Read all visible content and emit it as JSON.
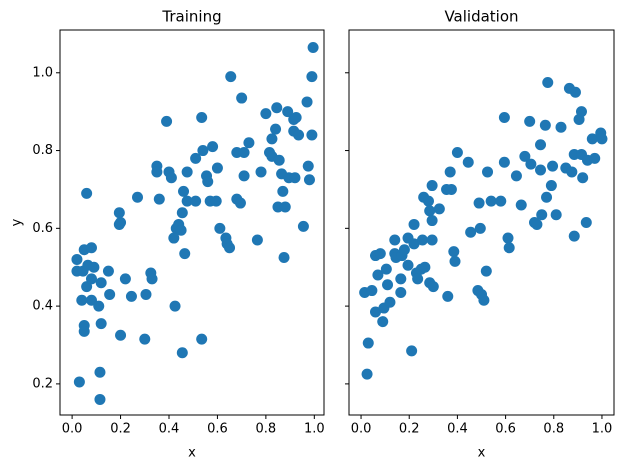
{
  "chart_data": [
    {
      "type": "scatter",
      "title": "Training",
      "x_label": "x",
      "y_label": "y",
      "color": "#1f77b4",
      "xlim": [
        -0.05,
        1.04
      ],
      "ylim": [
        0.12,
        1.11
      ],
      "xticks": [
        {
          "value": 0,
          "label": "0.0"
        },
        0.2,
        0.4,
        0.6,
        0.8,
        {
          "value": 1,
          "label": "1.0"
        }
      ],
      "yticks": [
        0.2,
        0.4,
        0.6,
        0.8,
        {
          "value": 1,
          "label": "1.0"
        }
      ],
      "x": [
        0.02,
        0.02,
        0.05,
        0.06,
        0.08,
        0.045,
        0.065,
        0.09,
        0.04,
        0.08,
        0.05,
        0.05,
        0.03,
        0.115,
        0.115,
        0.11,
        0.12,
        0.12,
        0.15,
        0.06,
        0.08,
        0.155,
        0.195,
        0.195,
        0.2,
        0.22,
        0.2,
        0.245,
        0.27,
        0.305,
        0.3,
        0.325,
        0.33,
        0.35,
        0.35,
        0.36,
        0.39,
        0.4,
        0.41,
        0.42,
        0.43,
        0.425,
        0.44,
        0.45,
        0.455,
        0.46,
        0.475,
        0.465,
        0.455,
        0.475,
        0.51,
        0.51,
        0.535,
        0.54,
        0.535,
        0.555,
        0.56,
        0.57,
        0.58,
        0.595,
        0.6,
        0.61,
        0.635,
        0.64,
        0.65,
        0.655,
        0.68,
        0.68,
        0.695,
        0.7,
        0.71,
        0.71,
        0.73,
        0.765,
        0.78,
        0.8,
        0.815,
        0.825,
        0.825,
        0.84,
        0.845,
        0.85,
        0.855,
        0.865,
        0.87,
        0.875,
        0.88,
        0.89,
        0.895,
        0.915,
        0.915,
        0.925,
        0.92,
        0.935,
        0.955,
        0.97,
        0.975,
        0.98,
        0.99,
        0.99,
        0.995
      ],
      "values": [
        0.52,
        0.49,
        0.545,
        0.69,
        0.55,
        0.49,
        0.505,
        0.5,
        0.415,
        0.415,
        0.35,
        0.335,
        0.205,
        0.23,
        0.16,
        0.4,
        0.355,
        0.46,
        0.49,
        0.45,
        0.47,
        0.43,
        0.64,
        0.61,
        0.615,
        0.47,
        0.325,
        0.425,
        0.68,
        0.43,
        0.315,
        0.485,
        0.47,
        0.76,
        0.745,
        0.675,
        0.875,
        0.745,
        0.73,
        0.575,
        0.6,
        0.4,
        0.61,
        0.595,
        0.64,
        0.695,
        0.67,
        0.535,
        0.28,
        0.745,
        0.67,
        0.78,
        0.885,
        0.8,
        0.315,
        0.735,
        0.72,
        0.67,
        0.81,
        0.67,
        0.755,
        0.6,
        0.575,
        0.56,
        0.55,
        0.99,
        0.795,
        0.675,
        0.665,
        0.935,
        0.795,
        0.735,
        0.82,
        0.57,
        0.745,
        0.895,
        0.795,
        0.785,
        0.83,
        0.855,
        0.91,
        0.655,
        0.775,
        0.74,
        0.695,
        0.525,
        0.655,
        0.9,
        0.73,
        0.85,
        0.88,
        0.885,
        0.73,
        0.84,
        0.605,
        0.925,
        0.76,
        0.725,
        0.84,
        0.99,
        1.065
      ]
    },
    {
      "type": "scatter",
      "title": "Validation",
      "x_label": "x",
      "color": "#1f77b4",
      "xlim": [
        -0.05,
        1.05
      ],
      "ylim": [
        0.12,
        1.11
      ],
      "xticks": [
        {
          "value": 0,
          "label": "0.0"
        },
        0.2,
        0.4,
        0.6,
        0.8,
        {
          "value": 1,
          "label": "1.0"
        }
      ],
      "yticks": [
        0.2,
        0.4,
        0.6,
        0.8,
        1
      ],
      "x": [
        0.015,
        0.03,
        0.025,
        0.045,
        0.06,
        0.07,
        0.06,
        0.08,
        0.09,
        0.105,
        0.11,
        0.095,
        0.12,
        0.14,
        0.14,
        0.145,
        0.165,
        0.17,
        0.165,
        0.18,
        0.195,
        0.195,
        0.21,
        0.22,
        0.22,
        0.23,
        0.235,
        0.25,
        0.255,
        0.265,
        0.26,
        0.28,
        0.285,
        0.285,
        0.295,
        0.295,
        0.295,
        0.3,
        0.325,
        0.355,
        0.36,
        0.37,
        0.375,
        0.385,
        0.39,
        0.4,
        0.445,
        0.455,
        0.485,
        0.49,
        0.495,
        0.5,
        0.51,
        0.52,
        0.525,
        0.54,
        0.58,
        0.595,
        0.595,
        0.61,
        0.615,
        0.645,
        0.665,
        0.68,
        0.7,
        0.705,
        0.72,
        0.73,
        0.745,
        0.745,
        0.75,
        0.765,
        0.77,
        0.775,
        0.79,
        0.795,
        0.81,
        0.83,
        0.85,
        0.865,
        0.875,
        0.89,
        0.885,
        0.885,
        0.905,
        0.915,
        0.92,
        0.915,
        0.935,
        0.94,
        0.96,
        0.97,
        0.995,
        1.0
      ],
      "values": [
        0.435,
        0.305,
        0.225,
        0.44,
        0.53,
        0.48,
        0.385,
        0.535,
        0.36,
        0.495,
        0.455,
        0.395,
        0.41,
        0.57,
        0.535,
        0.525,
        0.47,
        0.53,
        0.435,
        0.545,
        0.575,
        0.505,
        0.285,
        0.61,
        0.56,
        0.485,
        0.47,
        0.495,
        0.57,
        0.5,
        0.68,
        0.67,
        0.645,
        0.46,
        0.71,
        0.62,
        0.57,
        0.45,
        0.65,
        0.7,
        0.425,
        0.745,
        0.7,
        0.54,
        0.515,
        0.795,
        0.77,
        0.59,
        0.44,
        0.665,
        0.6,
        0.43,
        0.415,
        0.49,
        0.745,
        0.67,
        0.67,
        0.885,
        0.77,
        0.575,
        0.55,
        0.735,
        0.66,
        0.785,
        0.875,
        0.765,
        0.615,
        0.61,
        0.815,
        0.75,
        0.635,
        0.865,
        0.68,
        0.975,
        0.71,
        0.76,
        0.635,
        0.86,
        0.755,
        0.96,
        0.745,
        0.95,
        0.58,
        0.79,
        0.88,
        0.9,
        0.73,
        0.79,
        0.615,
        0.775,
        0.83,
        0.78,
        0.845,
        0.83
      ]
    }
  ]
}
